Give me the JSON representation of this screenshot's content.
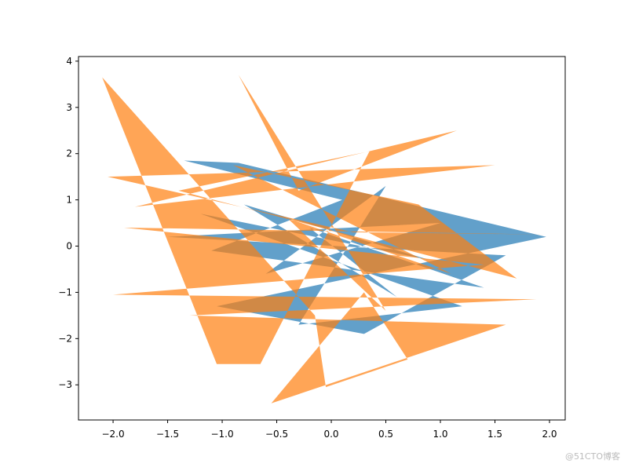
{
  "chart_data": {
    "type": "fill",
    "series": [
      {
        "color": "#1f77b4",
        "x": [
          -1.35,
          -0.85,
          1.97,
          -1.05,
          0.3,
          1.6,
          -1.5,
          1.0,
          -0.6,
          0.5,
          -0.3,
          1.2,
          -1.2,
          0.9,
          -0.8,
          0.6,
          -0.2,
          1.4,
          -1.1,
          0.1
        ],
        "y": [
          1.85,
          1.8,
          0.2,
          -1.3,
          -1.9,
          -0.2,
          0.2,
          0.5,
          -0.6,
          1.3,
          -1.7,
          -1.3,
          0.7,
          -0.3,
          0.9,
          -1.1,
          0.4,
          -0.9,
          -0.1,
          1.0
        ]
      },
      {
        "color": "#ff7f0e",
        "x": [
          -0.85,
          -0.3,
          1.15,
          -1.8,
          1.5,
          -2.05,
          0.2,
          1.97,
          -1.9,
          1.4,
          -2.0,
          1.88,
          -1.3,
          1.6,
          -0.55,
          0.3,
          0.7,
          -0.05,
          -0.15,
          -2.1,
          -1.05,
          -0.65,
          0.35,
          -1.4,
          1.7,
          0.8,
          -0.9,
          1.1,
          -0.4,
          0.5
        ],
        "y": [
          3.7,
          1.2,
          2.5,
          0.85,
          1.75,
          1.5,
          0.3,
          0.25,
          0.4,
          -0.4,
          -1.05,
          -1.15,
          -1.5,
          -1.7,
          -3.4,
          -1.0,
          -2.45,
          -3.05,
          -1.5,
          3.65,
          -2.55,
          -2.55,
          2.05,
          1.2,
          -0.7,
          0.9,
          1.75,
          -0.6,
          0.6,
          -1.4
        ]
      }
    ],
    "xlim": [
      -2.317,
      2.144
    ],
    "ylim": [
      -3.76,
      4.1
    ],
    "xticks": [
      {
        "value": -2.0,
        "label": "−2.0"
      },
      {
        "value": -1.5,
        "label": "−1.5"
      },
      {
        "value": -1.0,
        "label": "−1.0"
      },
      {
        "value": -0.5,
        "label": "−0.5"
      },
      {
        "value": 0.0,
        "label": "0.0"
      },
      {
        "value": 0.5,
        "label": "0.5"
      },
      {
        "value": 1.0,
        "label": "1.0"
      },
      {
        "value": 1.5,
        "label": "1.5"
      },
      {
        "value": 2.0,
        "label": "2.0"
      }
    ],
    "yticks": [
      {
        "value": -3,
        "label": "−3"
      },
      {
        "value": -2,
        "label": "−2"
      },
      {
        "value": -1,
        "label": "−1"
      },
      0,
      1,
      2,
      3,
      4
    ],
    "alpha": 0.7,
    "watermark": "@51CTO博客"
  }
}
